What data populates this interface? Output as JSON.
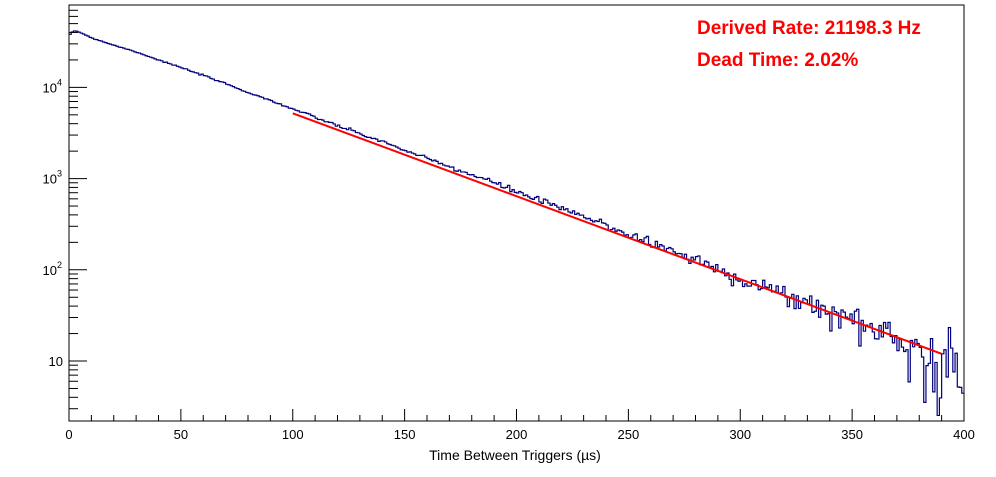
{
  "chart_data": {
    "type": "line",
    "title": "",
    "xlabel": "Time Between Triggers (µs)",
    "ylabel": "",
    "xlim": [
      0,
      400
    ],
    "ylim": [
      2.2,
      80000
    ],
    "yscale": "log",
    "grid": false,
    "x_ticks": [
      0,
      50,
      100,
      150,
      200,
      250,
      300,
      350,
      400
    ],
    "y_ticks": [
      {
        "value": 10,
        "label": "10"
      },
      {
        "value": 100,
        "label": "10",
        "exp": "2"
      },
      {
        "value": 1000,
        "label": "10",
        "exp": "3"
      },
      {
        "value": 10000,
        "label": "10",
        "exp": "4"
      }
    ],
    "annotations": [
      "Derived Rate: 21198.3 Hz",
      "Dead Time: 2.02%"
    ],
    "colors": {
      "histogram": "#00007a",
      "fit": "#ff0000",
      "annotation": "#ff0000"
    },
    "series": [
      {
        "kind": "histogram",
        "bin_width": 1,
        "x": [
          0,
          2,
          4,
          6,
          10,
          20,
          30,
          40,
          50,
          60,
          70,
          80,
          90,
          100,
          110,
          120,
          130,
          140,
          150,
          160,
          170,
          180,
          190,
          200,
          210,
          220,
          230,
          240,
          250,
          260,
          270,
          280,
          290,
          300,
          310,
          320,
          330,
          340,
          350,
          360,
          370,
          380,
          385,
          390,
          392,
          394,
          396,
          398,
          399
        ],
        "values": [
          36000,
          42000,
          41000,
          39000,
          35000,
          29000,
          24500,
          20000,
          16500,
          13500,
          11000,
          8800,
          7200,
          5800,
          4700,
          3800,
          3100,
          2550,
          2050,
          1650,
          1350,
          1100,
          900,
          720,
          580,
          470,
          380,
          310,
          245,
          200,
          160,
          130,
          100,
          82,
          66,
          52,
          44,
          33,
          30,
          22,
          18,
          14,
          12,
          6,
          9,
          16,
          18,
          5,
          3
        ]
      },
      {
        "kind": "fit",
        "x": [
          100,
          390
        ],
        "values": [
          5200,
          12
        ]
      }
    ]
  }
}
